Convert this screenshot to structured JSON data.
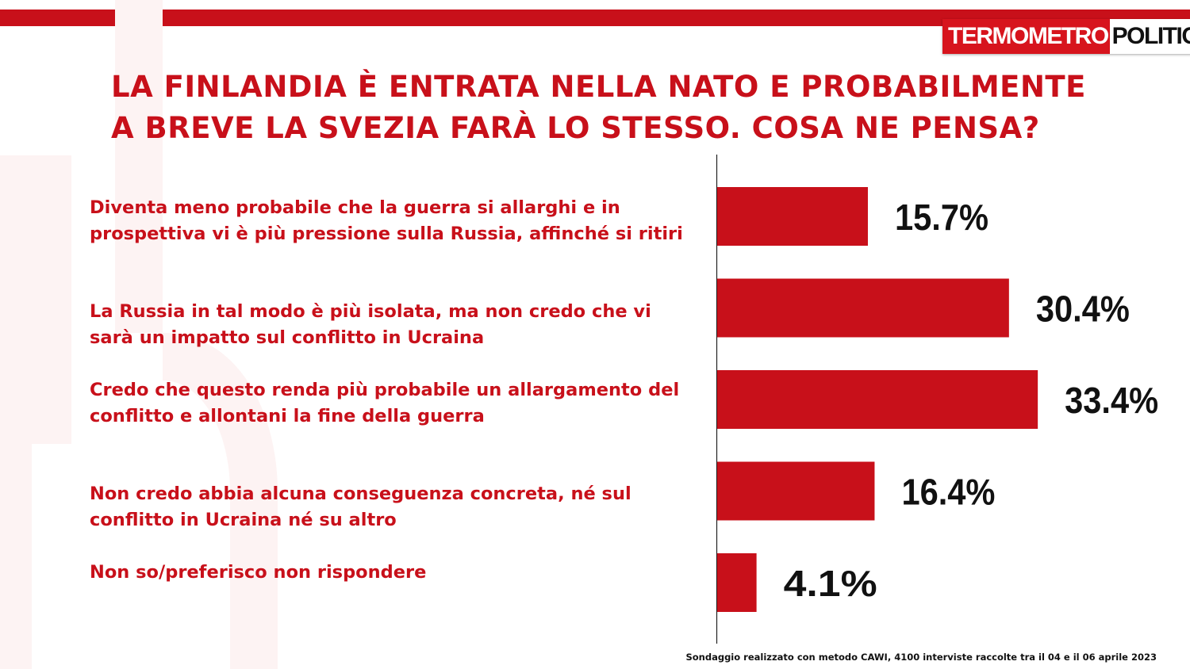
{
  "brand": {
    "logo_left": "TERMOMETRO",
    "logo_right": "POLITICO",
    "accent_color": "#c8101a"
  },
  "title": {
    "line1": "LA FINLANDIA È ENTRATA NELLA NATO E PROBABILMENTE",
    "line2": "A BREVE LA SVEZIA FARÀ LO STESSO. COSA NE PENSA?"
  },
  "chart_data": {
    "type": "bar",
    "orientation": "horizontal",
    "categories": [
      "Diventa meno probabile che la guerra si allarghi e in prospettiva vi è più pressione sulla Russia, affinché si ritiri",
      "La Russia in tal modo è più isolata, ma non credo che vi sarà un impatto sul conflitto in Ucraina",
      "Credo che questo renda più probabile un allargamento del conflitto e allontani la fine della guerra",
      "Non credo abbia alcuna conseguenza concreta, né sul conflitto in Ucraina né su altro",
      "Non so/preferisco non rispondere"
    ],
    "values": [
      15.7,
      30.4,
      33.4,
      16.4,
      4.1
    ],
    "value_labels": [
      "15.7%",
      "30.4%",
      "33.4%",
      "16.4%",
      "4.1%"
    ],
    "bar_color": "#c8101a",
    "grid": false
  },
  "footnote": "Sondaggio realizzato con metodo CAWI, 4100 interviste raccolte tra il 04 e il 06 aprile 2023"
}
